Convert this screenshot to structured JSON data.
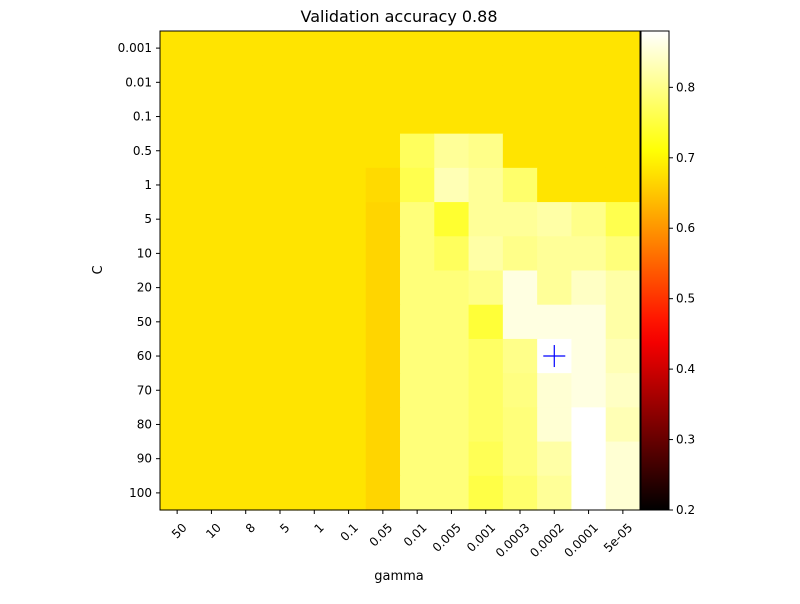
{
  "chart_data": {
    "type": "heatmap",
    "title": "Validation accuracy 0.88",
    "xlabel": "gamma",
    "ylabel": "C",
    "x_categories": [
      "50",
      "10",
      "8",
      "5",
      "1",
      "0.1",
      "0.05",
      "0.01",
      "0.005",
      "0.001",
      "0.0003",
      "0.0002",
      "0.0001",
      "5e-05"
    ],
    "y_categories": [
      "0.001",
      "0.01",
      "0.1",
      "0.5",
      "1",
      "5",
      "10",
      "20",
      "50",
      "60",
      "70",
      "80",
      "90",
      "100"
    ],
    "values": [
      [
        0.68,
        0.68,
        0.68,
        0.68,
        0.68,
        0.68,
        0.68,
        0.68,
        0.68,
        0.68,
        0.68,
        0.68,
        0.68,
        0.68
      ],
      [
        0.68,
        0.68,
        0.68,
        0.68,
        0.68,
        0.68,
        0.68,
        0.68,
        0.68,
        0.68,
        0.68,
        0.68,
        0.68,
        0.68
      ],
      [
        0.68,
        0.68,
        0.68,
        0.68,
        0.68,
        0.68,
        0.68,
        0.68,
        0.68,
        0.68,
        0.68,
        0.68,
        0.68,
        0.68
      ],
      [
        0.68,
        0.68,
        0.68,
        0.68,
        0.68,
        0.68,
        0.68,
        0.77,
        0.81,
        0.8,
        0.68,
        0.68,
        0.68,
        0.68
      ],
      [
        0.68,
        0.68,
        0.68,
        0.68,
        0.68,
        0.68,
        0.67,
        0.76,
        0.83,
        0.81,
        0.78,
        0.68,
        0.68,
        0.68
      ],
      [
        0.68,
        0.68,
        0.68,
        0.68,
        0.68,
        0.68,
        0.665,
        0.79,
        0.74,
        0.81,
        0.81,
        0.82,
        0.8,
        0.76
      ],
      [
        0.68,
        0.68,
        0.68,
        0.68,
        0.68,
        0.68,
        0.665,
        0.79,
        0.77,
        0.82,
        0.8,
        0.81,
        0.81,
        0.79
      ],
      [
        0.68,
        0.68,
        0.68,
        0.68,
        0.68,
        0.68,
        0.665,
        0.79,
        0.79,
        0.8,
        0.86,
        0.81,
        0.84,
        0.82
      ],
      [
        0.68,
        0.68,
        0.68,
        0.68,
        0.68,
        0.68,
        0.665,
        0.79,
        0.79,
        0.745,
        0.86,
        0.86,
        0.86,
        0.82
      ],
      [
        0.68,
        0.68,
        0.68,
        0.68,
        0.68,
        0.68,
        0.665,
        0.79,
        0.79,
        0.775,
        0.8,
        0.88,
        0.86,
        0.83
      ],
      [
        0.68,
        0.68,
        0.68,
        0.68,
        0.68,
        0.68,
        0.665,
        0.79,
        0.79,
        0.775,
        0.795,
        0.85,
        0.86,
        0.84
      ],
      [
        0.68,
        0.68,
        0.68,
        0.68,
        0.68,
        0.68,
        0.665,
        0.79,
        0.79,
        0.775,
        0.79,
        0.85,
        0.88,
        0.83
      ],
      [
        0.68,
        0.68,
        0.68,
        0.68,
        0.68,
        0.68,
        0.665,
        0.79,
        0.79,
        0.765,
        0.79,
        0.82,
        0.88,
        0.85
      ],
      [
        0.68,
        0.68,
        0.68,
        0.68,
        0.68,
        0.68,
        0.665,
        0.79,
        0.79,
        0.755,
        0.78,
        0.81,
        0.88,
        0.85
      ]
    ],
    "colormap": "hot",
    "vmin": 0.2,
    "vmax": 0.88,
    "colorbar_ticks": [
      "0.2",
      "0.3",
      "0.4",
      "0.5",
      "0.6",
      "0.7",
      "0.8"
    ],
    "best_marker": {
      "symbol": "+",
      "color": "#0000ff",
      "x_category": "0.0002",
      "y_category": "60"
    },
    "grid": false
  }
}
